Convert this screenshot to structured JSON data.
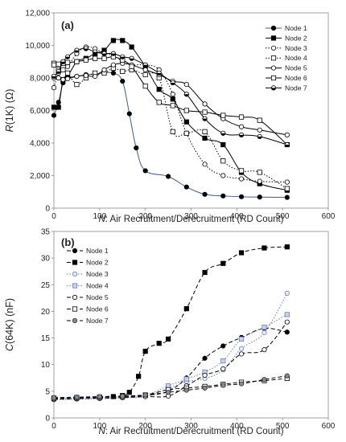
{
  "chart_data": [
    {
      "type": "line",
      "panel_label": "(a)",
      "ylabel_var": "R",
      "ylabel_rest": "(1K) (Ω)",
      "xlabel_var": "N",
      "xlabel_rest": ": Air Recruitment/Derecruitment (RD Count)",
      "xlim": [
        0,
        600
      ],
      "ylim": [
        0,
        12000
      ],
      "xticks": [
        0,
        100,
        200,
        300,
        400,
        500,
        600
      ],
      "yticks": [
        0,
        2000,
        4000,
        6000,
        8000,
        10000,
        12000
      ],
      "xtick_labels": [
        "0",
        "100",
        "200",
        "300",
        "400",
        "500",
        "600"
      ],
      "ytick_labels": [
        "0",
        "2,000",
        "4,000",
        "6,000",
        "8,000",
        "10,000",
        "12,000"
      ],
      "legend_position": "top-right",
      "series": [
        {
          "name": "Node 1",
          "marker": "circle-filled",
          "dash": "solid",
          "line_color": "#3b5b8f",
          "x": [
            0,
            10,
            20,
            30,
            50,
            70,
            90,
            110,
            130,
            150,
            165,
            180,
            200,
            250,
            290,
            330,
            370,
            410,
            450,
            510
          ],
          "y": [
            5700,
            6500,
            7700,
            8000,
            8100,
            8200,
            8250,
            8300,
            8300,
            7800,
            5800,
            3700,
            2300,
            1950,
            1300,
            850,
            750,
            700,
            680,
            660
          ]
        },
        {
          "name": "Node 2",
          "marker": "square-filled",
          "dash": "solid",
          "line_color": "#000000",
          "x": [
            0,
            10,
            20,
            30,
            50,
            70,
            90,
            110,
            130,
            150,
            170,
            200,
            230,
            260,
            290,
            330,
            370,
            410,
            450,
            510
          ],
          "y": [
            6200,
            6200,
            7900,
            8100,
            9000,
            9200,
            9500,
            9700,
            10300,
            10300,
            9900,
            8700,
            7300,
            6700,
            5300,
            4300,
            3900,
            2200,
            1500,
            1100
          ]
        },
        {
          "name": "Node 3",
          "marker": "circle-open",
          "dash": "dotted",
          "line_color": "#000000",
          "x": [
            0,
            10,
            20,
            30,
            50,
            70,
            90,
            110,
            130,
            150,
            170,
            200,
            230,
            260,
            290,
            330,
            370,
            410,
            450,
            510
          ],
          "y": [
            7400,
            8300,
            8500,
            8700,
            9500,
            9900,
            9800,
            9500,
            9400,
            9000,
            8800,
            8800,
            8500,
            7000,
            4600,
            2700,
            2000,
            1800,
            1650,
            1600
          ]
        },
        {
          "name": "Node 4",
          "marker": "square-open",
          "dash": "dotted",
          "line_color": "#000000",
          "x": [
            0,
            10,
            20,
            30,
            50,
            70,
            90,
            110,
            130,
            150,
            170,
            200,
            230,
            260,
            290,
            330,
            370,
            410,
            450,
            510
          ],
          "y": [
            8900,
            8500,
            8500,
            8300,
            7600,
            8000,
            8300,
            8300,
            8600,
            8400,
            8500,
            8200,
            8000,
            4700,
            4600,
            4700,
            2900,
            2300,
            2200,
            1200
          ]
        },
        {
          "name": "Node 5",
          "marker": "circle-open",
          "dash": "solid",
          "line_color": "#000000",
          "x": [
            0,
            10,
            20,
            30,
            50,
            70,
            90,
            110,
            130,
            150,
            170,
            200,
            230,
            260,
            290,
            330,
            370,
            410,
            450,
            510
          ],
          "y": [
            8000,
            8000,
            7900,
            7950,
            8100,
            8150,
            8100,
            8500,
            8800,
            8900,
            8800,
            8500,
            8200,
            7800,
            7600,
            6400,
            5500,
            5000,
            4800,
            4500
          ]
        },
        {
          "name": "Node 6",
          "marker": "square-open",
          "dash": "solid",
          "line_color": "#000000",
          "x": [
            0,
            10,
            20,
            30,
            50,
            70,
            90,
            110,
            130,
            150,
            170,
            200,
            230,
            260,
            290,
            330,
            370,
            410,
            450,
            510
          ],
          "y": [
            8800,
            8850,
            8900,
            8950,
            9000,
            9100,
            9200,
            9200,
            9300,
            9100,
            8700,
            7500,
            6500,
            6300,
            6000,
            5900,
            5700,
            5600,
            5400,
            3900
          ]
        },
        {
          "name": "Node 7",
          "marker": "circle-half",
          "dash": "solid",
          "line_color": "#000000",
          "x": [
            0,
            10,
            20,
            30,
            50,
            70,
            90,
            110,
            130,
            150,
            170,
            200,
            230,
            260,
            290,
            330,
            370,
            410,
            450,
            510
          ],
          "y": [
            8100,
            8400,
            9000,
            9300,
            9700,
            9800,
            9600,
            9500,
            9500,
            9300,
            9200,
            8800,
            8300,
            7700,
            7000,
            5500,
            4600,
            4500,
            4400,
            3900
          ]
        }
      ]
    },
    {
      "type": "line",
      "panel_label": "(b)",
      "ylabel_var": "C",
      "ylabel_rest": "(64K) (nF)",
      "xlabel_var": "N",
      "xlabel_rest": ": Air Recruitment/Derecruitment (RD Count)",
      "xlim": [
        0,
        600
      ],
      "ylim": [
        0,
        35
      ],
      "xticks": [
        0,
        100,
        200,
        300,
        400,
        500,
        600
      ],
      "yticks": [
        0,
        5,
        10,
        15,
        20,
        25,
        30,
        35
      ],
      "xtick_labels": [
        "0",
        "100",
        "200",
        "300",
        "400",
        "500",
        "600"
      ],
      "ytick_labels": [
        "0",
        "5",
        "10",
        "15",
        "20",
        "25",
        "30",
        "35"
      ],
      "legend_position": "top-left",
      "series": [
        {
          "name": "Node 1",
          "marker": "circle-filled",
          "dash": "dashed",
          "line_color": "#000000",
          "x": [
            0,
            50,
            100,
            150,
            200,
            250,
            290,
            330,
            370,
            410,
            460,
            510
          ],
          "y": [
            3.8,
            3.8,
            3.9,
            4.0,
            4.2,
            5.0,
            7.5,
            11.2,
            13.5,
            15.1,
            16.8,
            16.1
          ]
        },
        {
          "name": "Node 2",
          "marker": "square-filled",
          "dash": "dashed",
          "line_color": "#000000",
          "x": [
            0,
            50,
            100,
            130,
            150,
            165,
            185,
            200,
            230,
            250,
            290,
            330,
            370,
            410,
            460,
            510
          ],
          "y": [
            3.7,
            3.8,
            3.9,
            4.0,
            4.2,
            4.8,
            7.8,
            12.5,
            14.0,
            14.8,
            20.5,
            27.3,
            29.0,
            31.0,
            31.9,
            32.1
          ]
        },
        {
          "name": "Node 3",
          "marker": "circle-open-blue",
          "dash": "dotted",
          "line_color": "#6a7fb5",
          "x": [
            0,
            50,
            100,
            150,
            200,
            250,
            290,
            330,
            370,
            410,
            460,
            510
          ],
          "y": [
            3.4,
            3.5,
            3.6,
            3.8,
            4.0,
            5.5,
            6.8,
            7.4,
            9.0,
            13.0,
            16.0,
            23.4
          ]
        },
        {
          "name": "Node 4",
          "marker": "square-open-blue",
          "dash": "dotted",
          "line_color": "#6a7fb5",
          "x": [
            0,
            50,
            100,
            150,
            200,
            250,
            290,
            330,
            370,
            410,
            460,
            510
          ],
          "y": [
            3.6,
            3.7,
            3.8,
            4.0,
            4.3,
            6.0,
            7.3,
            8.6,
            10.7,
            14.8,
            17.0,
            19.4
          ]
        },
        {
          "name": "Node 5",
          "marker": "circle-open",
          "dash": "dashed",
          "line_color": "#000000",
          "x": [
            0,
            50,
            100,
            150,
            200,
            250,
            290,
            330,
            370,
            410,
            460,
            510
          ],
          "y": [
            3.5,
            3.6,
            3.7,
            3.8,
            4.0,
            4.1,
            6.0,
            8.0,
            9.2,
            12.0,
            12.8,
            18.0
          ]
        },
        {
          "name": "Node 6",
          "marker": "square-open",
          "dash": "dashed",
          "line_color": "#000000",
          "x": [
            0,
            50,
            100,
            150,
            200,
            250,
            290,
            330,
            370,
            410,
            460,
            510
          ],
          "y": [
            3.7,
            3.8,
            3.9,
            4.0,
            4.3,
            5.3,
            5.6,
            5.9,
            6.3,
            6.7,
            7.0,
            7.4
          ]
        },
        {
          "name": "Node 7",
          "marker": "circle-gray",
          "dash": "dashed",
          "line_color": "#000000",
          "x": [
            0,
            50,
            100,
            150,
            200,
            250,
            290,
            330,
            370,
            410,
            460,
            510
          ],
          "y": [
            3.8,
            3.9,
            4.0,
            4.1,
            4.3,
            4.8,
            5.2,
            5.6,
            6.1,
            6.4,
            7.2,
            7.9
          ]
        }
      ]
    }
  ]
}
